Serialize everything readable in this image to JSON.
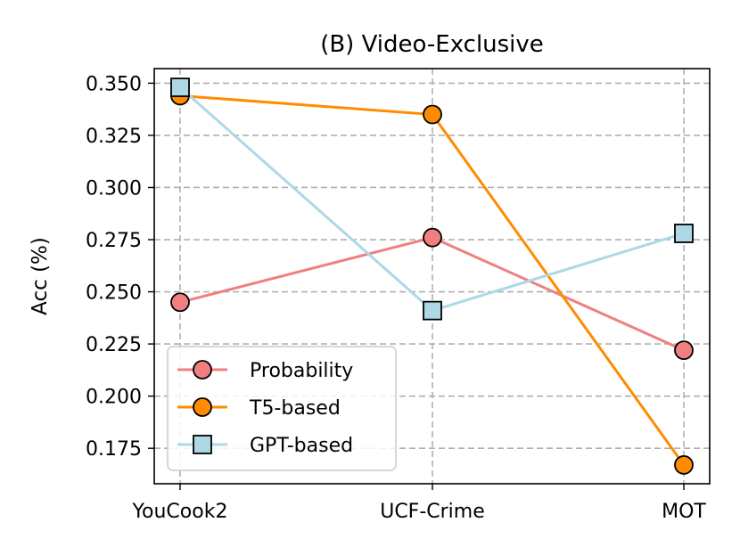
{
  "chart_data": {
    "type": "line",
    "title": "(B) Video-Exclusive",
    "xlabel": "",
    "ylabel": "Acc (%)",
    "categories": [
      "YouCook2",
      "UCF-Crime",
      "MOT"
    ],
    "ylim": [
      0.158,
      0.357
    ],
    "yticks": [
      "0.175",
      "0.200",
      "0.225",
      "0.250",
      "0.275",
      "0.300",
      "0.325",
      "0.350"
    ],
    "grid": true,
    "legend_position": "lower-left",
    "series": [
      {
        "name": "Probability",
        "values": [
          0.245,
          0.276,
          0.222
        ],
        "color": "#f08080",
        "marker": "circle"
      },
      {
        "name": "T5-based",
        "values": [
          0.344,
          0.335,
          0.167
        ],
        "color": "#ff8c00",
        "marker": "circle"
      },
      {
        "name": "GPT-based",
        "values": [
          0.348,
          0.241,
          0.278
        ],
        "color": "#add8e6",
        "marker": "square"
      }
    ]
  }
}
